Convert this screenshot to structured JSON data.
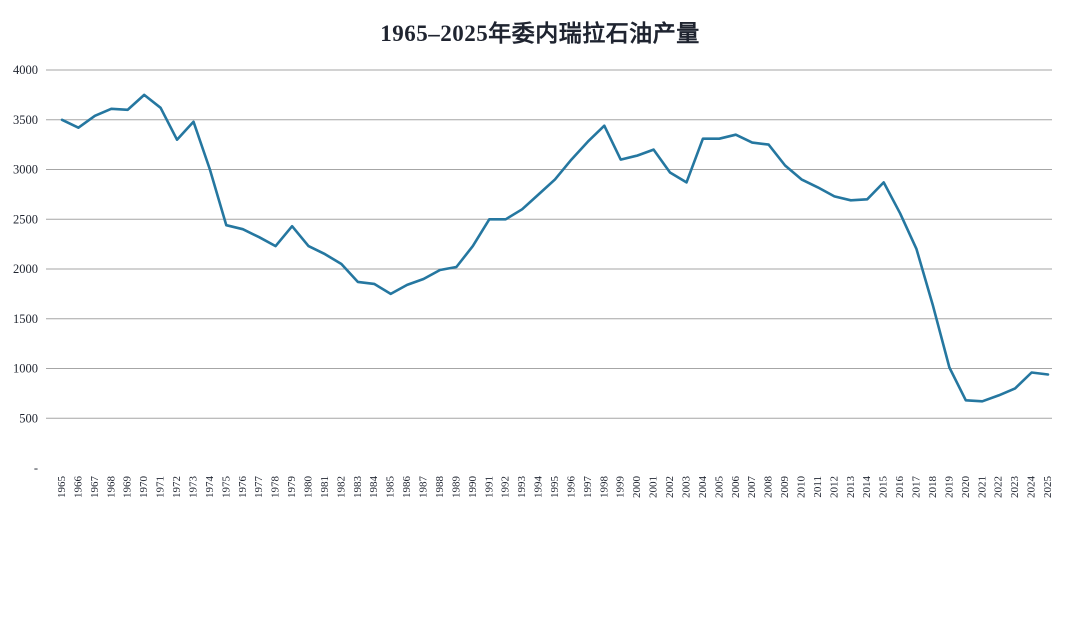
{
  "page": {
    "background": "#ffffff"
  },
  "chart_data": {
    "type": "line",
    "title": "1965–2025年委内瑞拉石油产量",
    "xlabel": "",
    "ylabel": "",
    "grid": true,
    "legend": false,
    "ylim": [
      0,
      4000
    ],
    "ytick_interval": 500,
    "y_ticks": [
      {
        "value": 0,
        "label": "-"
      },
      {
        "value": 500,
        "label": "500"
      },
      {
        "value": 1000,
        "label": "1000"
      },
      {
        "value": 1500,
        "label": "1500"
      },
      {
        "value": 2000,
        "label": "2000"
      },
      {
        "value": 2500,
        "label": "2500"
      },
      {
        "value": 3000,
        "label": "3000"
      },
      {
        "value": 3500,
        "label": "3500"
      },
      {
        "value": 4000,
        "label": "4000"
      }
    ],
    "categories": [
      "1965",
      "1966",
      "1967",
      "1968",
      "1969",
      "1970",
      "1971",
      "1972",
      "1973",
      "1974",
      "1975",
      "1976",
      "1977",
      "1978",
      "1979",
      "1980",
      "1981",
      "1982",
      "1983",
      "1984",
      "1985",
      "1986",
      "1987",
      "1988",
      "1989",
      "1990",
      "1991",
      "1992",
      "1993",
      "1994",
      "1995",
      "1996",
      "1997",
      "1998",
      "1999",
      "2000",
      "2001",
      "2002",
      "2003",
      "2004",
      "2005",
      "2006",
      "2007",
      "2008",
      "2009",
      "2010",
      "2011",
      "2012",
      "2013",
      "2014",
      "2015",
      "2016",
      "2017",
      "2018",
      "2019",
      "2020",
      "2021",
      "2022",
      "2023",
      "2024",
      "2025"
    ],
    "series": [
      {
        "name": "石油产量",
        "color": "#2577a0",
        "values": [
          3500,
          3420,
          3540,
          3610,
          3600,
          3750,
          3620,
          3300,
          3480,
          3000,
          2440,
          2400,
          2320,
          2230,
          2430,
          2230,
          2150,
          2050,
          1870,
          1850,
          1750,
          1840,
          1900,
          1990,
          2020,
          2230,
          2500,
          2500,
          2600,
          2750,
          2900,
          3100,
          3280,
          3440,
          3100,
          3140,
          3200,
          2970,
          2870,
          3310,
          3310,
          3350,
          3270,
          3250,
          3040,
          2900,
          2820,
          2730,
          2690,
          2700,
          2870,
          2560,
          2200,
          1630,
          1010,
          680,
          670,
          730,
          800,
          960,
          940
        ]
      }
    ]
  }
}
